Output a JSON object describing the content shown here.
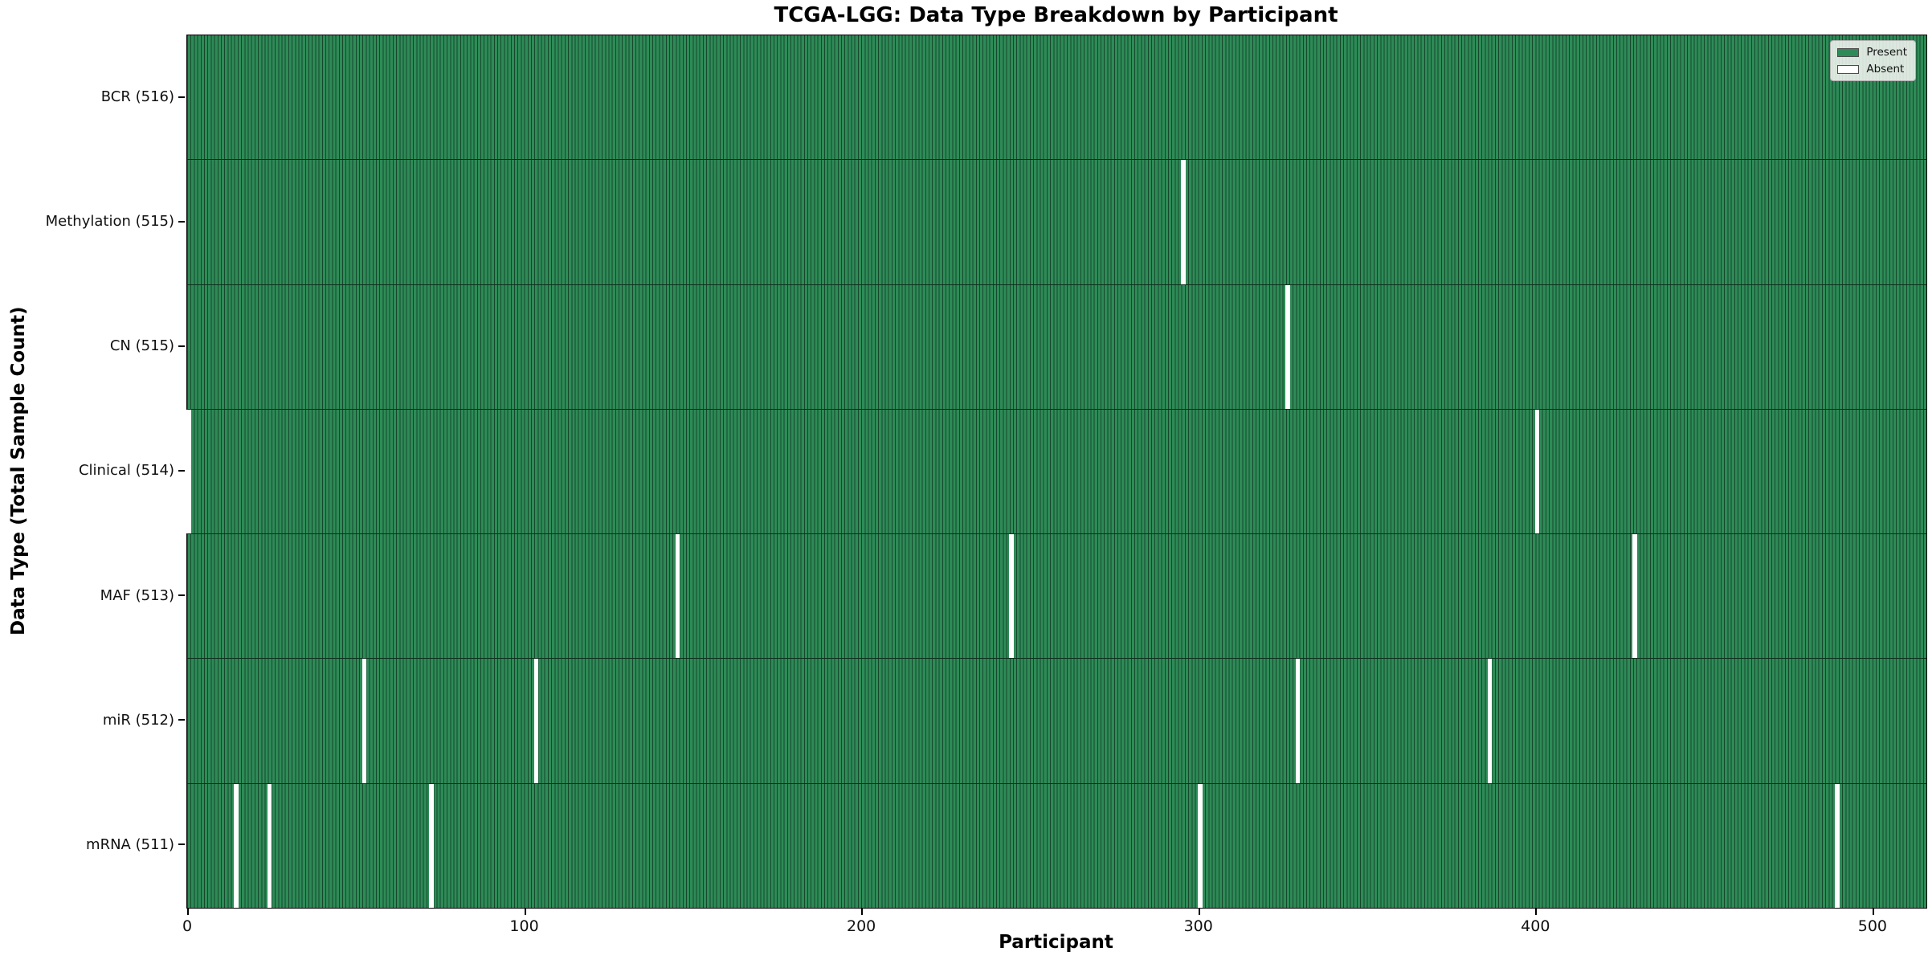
{
  "chart_data": {
    "type": "heatmap",
    "title": "TCGA-LGG: Data Type Breakdown by Participant",
    "xlabel": "Participant",
    "ylabel": "Data Type (Total Sample Count)",
    "x_ticks": [
      0,
      100,
      200,
      300,
      400,
      500
    ],
    "x_range": [
      0,
      516
    ],
    "n_participants": 516,
    "grid": false,
    "legend_position": "upper right",
    "legend": [
      {
        "label": "Present",
        "color": "#2e8b57"
      },
      {
        "label": "Absent",
        "color": "#ffffff"
      }
    ],
    "colors": {
      "present": "#2e8b57",
      "cell_edge": "#17472c",
      "absent": "#ffffff",
      "spine": "#000000"
    },
    "rows": [
      {
        "label": "BCR (516)",
        "data_type": "BCR",
        "present_count": 516,
        "absent_participants": []
      },
      {
        "label": "Methylation (515)",
        "data_type": "Methylation",
        "present_count": 515,
        "absent_participants": [
          295
        ]
      },
      {
        "label": "CN (515)",
        "data_type": "CN",
        "present_count": 515,
        "absent_participants": [
          326
        ]
      },
      {
        "label": "Clinical (514)",
        "data_type": "Clinical",
        "present_count": 514,
        "absent_participants": [
          0,
          400
        ]
      },
      {
        "label": "MAF (513)",
        "data_type": "MAF",
        "present_count": 513,
        "absent_participants": [
          145,
          244,
          429
        ]
      },
      {
        "label": "miR (512)",
        "data_type": "miR",
        "present_count": 512,
        "absent_participants": [
          52,
          103,
          329,
          386
        ]
      },
      {
        "label": "mRNA (511)",
        "data_type": "mRNA",
        "present_count": 511,
        "absent_participants": [
          14,
          24,
          72,
          300,
          489
        ]
      }
    ]
  }
}
